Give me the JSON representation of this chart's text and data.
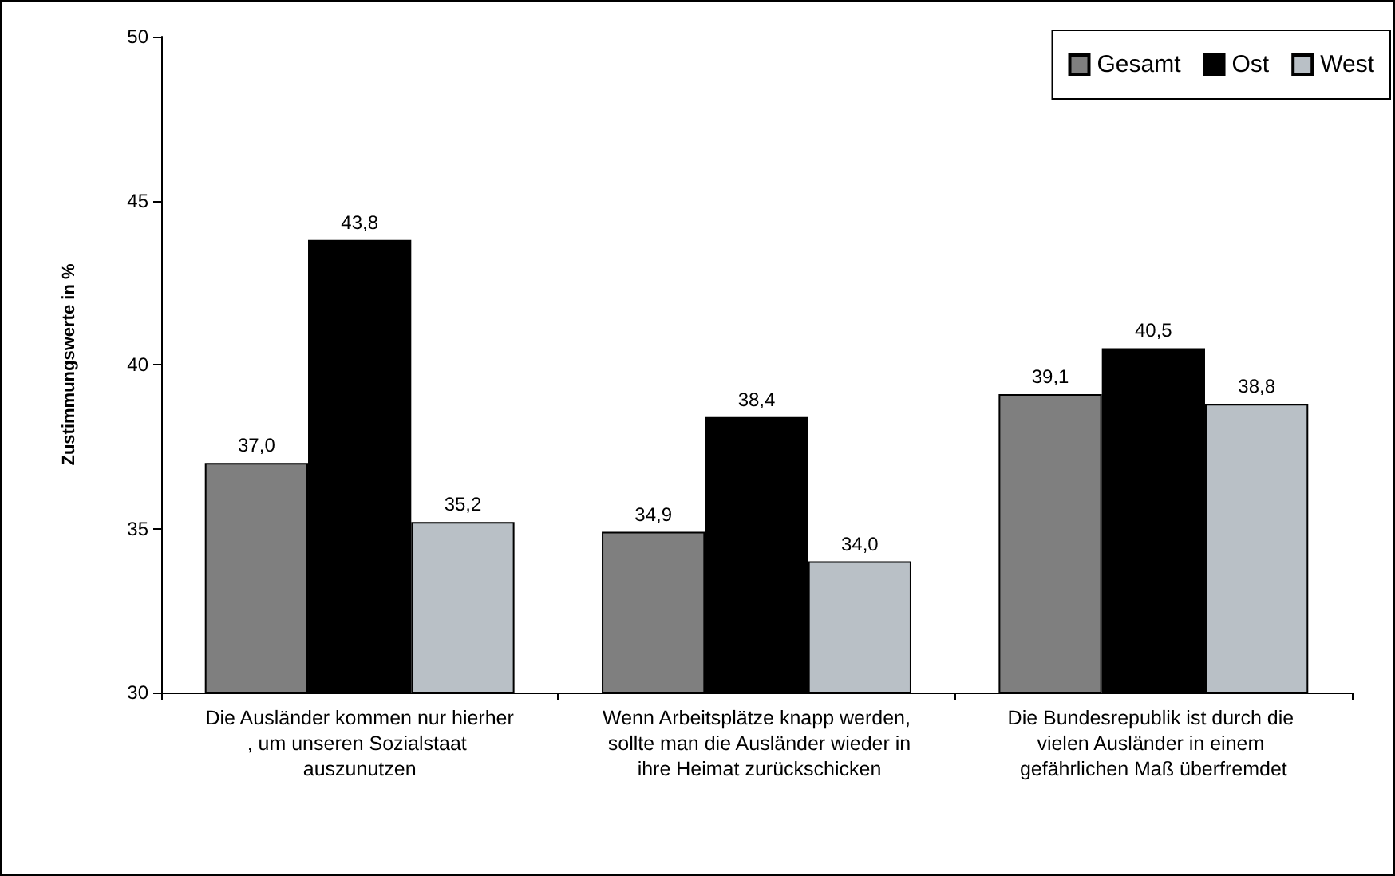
{
  "chart_data": {
    "type": "bar",
    "ylabel": "Zustimmungswerte in %",
    "categories": [
      "Die Ausländer kommen nur hierher, um unseren Sozialstaat auszunutzen",
      "Wenn Arbeitsplätze knapp werden, sollte man die Ausländer wieder in ihre Heimat zurückschicken",
      "Die Bundesrepublik ist durch die vielen Ausländer in einem gefährlichen Maß überfremdet"
    ],
    "series": [
      {
        "name": "Gesamt",
        "color": "#7f7f7f",
        "values": [
          37.0,
          34.9,
          39.1
        ],
        "value_labels": [
          "37,0",
          "34,9",
          "39,1"
        ]
      },
      {
        "name": "Ost",
        "color": "#000000",
        "values": [
          43.8,
          38.4,
          40.5
        ],
        "value_labels": [
          "43,8",
          "38,4",
          "40,5"
        ]
      },
      {
        "name": "West",
        "color": "#b9c0c6",
        "values": [
          35.2,
          34.0,
          38.8
        ],
        "value_labels": [
          "35,2",
          "34,0",
          "38,8"
        ]
      }
    ],
    "ylim": [
      30,
      50
    ],
    "yticks": [
      30,
      35,
      40,
      45,
      50
    ],
    "grid": false,
    "legend": "top right"
  }
}
